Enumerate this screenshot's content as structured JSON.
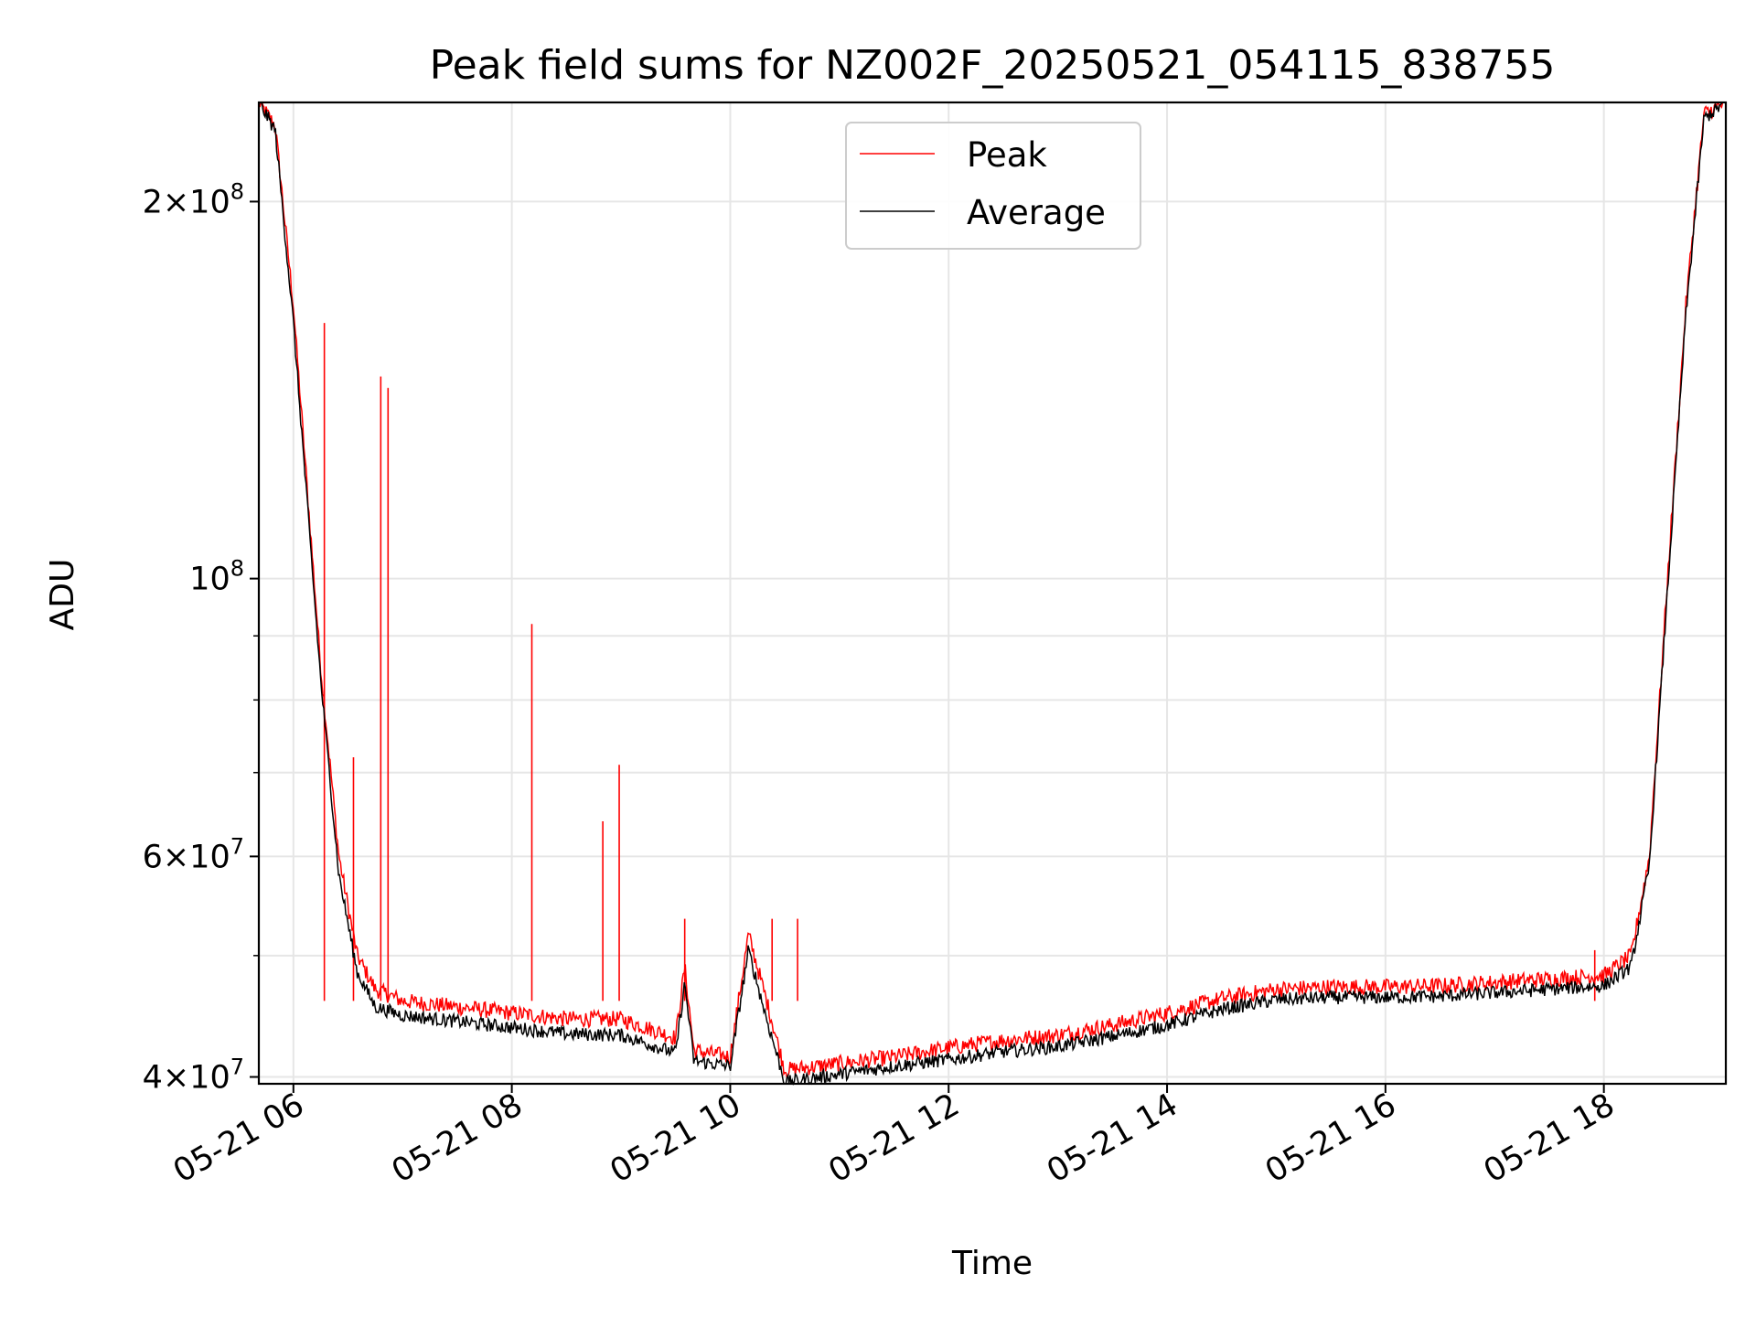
{
  "chart_data": {
    "type": "line",
    "title": "Peak field sums for NZ002F_20250521_054115_838755",
    "xlabel": "Time",
    "ylabel": "ADU",
    "y_scale": "log",
    "ylim": [
      39500000,
      240000000
    ],
    "xlim": [
      "2025-05-21 05:41",
      "2025-05-21 19:07"
    ],
    "x_tick_labels": [
      "05-21 06",
      "05-21 08",
      "05-21 10",
      "05-21 12",
      "05-21 14",
      "05-21 16",
      "05-21 18"
    ],
    "y_ticks": [
      {
        "value": 40000000,
        "mantissa": "4",
        "exp": "7"
      },
      {
        "value": 60000000,
        "mantissa": "6",
        "exp": "7"
      },
      {
        "value": 100000000,
        "mantissa": "",
        "exp": "8"
      },
      {
        "value": 200000000,
        "mantissa": "2",
        "exp": "8"
      }
    ],
    "grid": true,
    "legend_position": "upper center",
    "series": [
      {
        "name": "Peak",
        "color": "#ff0000",
        "points": [
          [
            "2025-05-21 05:41",
            240000000
          ],
          [
            "2025-05-21 05:50",
            230000000
          ],
          [
            "2025-05-21 06:00",
            165000000
          ],
          [
            "2025-05-21 06:15",
            85000000
          ],
          [
            "2025-05-21 06:25",
            60000000
          ],
          [
            "2025-05-21 06:35",
            50000000
          ],
          [
            "2025-05-21 06:45",
            47000000
          ],
          [
            "2025-05-21 07:00",
            46000000
          ],
          [
            "2025-05-21 07:30",
            45500000
          ],
          [
            "2025-05-21 08:00",
            45000000
          ],
          [
            "2025-05-21 08:30",
            44500000
          ],
          [
            "2025-05-21 09:00",
            44500000
          ],
          [
            "2025-05-21 09:30",
            43000000
          ],
          [
            "2025-05-21 09:35",
            49000000
          ],
          [
            "2025-05-21 09:40",
            42000000
          ],
          [
            "2025-05-21 10:00",
            41500000
          ],
          [
            "2025-05-21 10:10",
            52000000
          ],
          [
            "2025-05-21 10:20",
            46000000
          ],
          [
            "2025-05-21 10:30",
            40500000
          ],
          [
            "2025-05-21 11:00",
            41000000
          ],
          [
            "2025-05-21 11:30",
            41500000
          ],
          [
            "2025-05-21 12:00",
            42200000
          ],
          [
            "2025-05-21 12:30",
            42800000
          ],
          [
            "2025-05-21 13:00",
            43200000
          ],
          [
            "2025-05-21 13:30",
            44000000
          ],
          [
            "2025-05-21 14:00",
            45000000
          ],
          [
            "2025-05-21 14:30",
            46200000
          ],
          [
            "2025-05-21 15:00",
            47000000
          ],
          [
            "2025-05-21 15:30",
            47200000
          ],
          [
            "2025-05-21 16:00",
            47200000
          ],
          [
            "2025-05-21 16:30",
            47300000
          ],
          [
            "2025-05-21 17:00",
            47600000
          ],
          [
            "2025-05-21 17:30",
            47900000
          ],
          [
            "2025-05-21 18:00",
            48200000
          ],
          [
            "2025-05-21 18:15",
            50000000
          ],
          [
            "2025-05-21 18:25",
            60000000
          ],
          [
            "2025-05-21 18:35",
            100000000
          ],
          [
            "2025-05-21 18:45",
            165000000
          ],
          [
            "2025-05-21 18:55",
            235000000
          ],
          [
            "2025-05-21 19:07",
            240000000
          ]
        ],
        "spikes": [
          [
            "2025-05-21 06:17",
            160000000
          ],
          [
            "2025-05-21 06:48",
            145000000
          ],
          [
            "2025-05-21 06:52",
            142000000
          ],
          [
            "2025-05-21 06:33",
            72000000
          ],
          [
            "2025-05-21 08:11",
            92000000
          ],
          [
            "2025-05-21 08:50",
            64000000
          ],
          [
            "2025-05-21 08:59",
            71000000
          ],
          [
            "2025-05-21 09:35",
            53500000
          ],
          [
            "2025-05-21 10:23",
            53500000
          ],
          [
            "2025-05-21 10:37",
            53500000
          ],
          [
            "2025-05-21 17:55",
            50500000
          ]
        ]
      },
      {
        "name": "Average",
        "color": "#000000",
        "points": [
          [
            "2025-05-21 05:41",
            240000000
          ],
          [
            "2025-05-21 05:50",
            228000000
          ],
          [
            "2025-05-21 06:00",
            160000000
          ],
          [
            "2025-05-21 06:15",
            83000000
          ],
          [
            "2025-05-21 06:25",
            58000000
          ],
          [
            "2025-05-21 06:35",
            48500000
          ],
          [
            "2025-05-21 06:45",
            45500000
          ],
          [
            "2025-05-21 07:00",
            44800000
          ],
          [
            "2025-05-21 07:30",
            44300000
          ],
          [
            "2025-05-21 08:00",
            43800000
          ],
          [
            "2025-05-21 08:30",
            43300000
          ],
          [
            "2025-05-21 09:00",
            43200000
          ],
          [
            "2025-05-21 09:30",
            41800000
          ],
          [
            "2025-05-21 09:35",
            47500000
          ],
          [
            "2025-05-21 09:40",
            41200000
          ],
          [
            "2025-05-21 10:00",
            40800000
          ],
          [
            "2025-05-21 10:10",
            50500000
          ],
          [
            "2025-05-21 10:20",
            44500000
          ],
          [
            "2025-05-21 10:30",
            39600000
          ],
          [
            "2025-05-21 11:00",
            40200000
          ],
          [
            "2025-05-21 11:30",
            40800000
          ],
          [
            "2025-05-21 12:00",
            41300000
          ],
          [
            "2025-05-21 12:30",
            41900000
          ],
          [
            "2025-05-21 13:00",
            42300000
          ],
          [
            "2025-05-21 13:30",
            43100000
          ],
          [
            "2025-05-21 14:00",
            44000000
          ],
          [
            "2025-05-21 14:30",
            45300000
          ],
          [
            "2025-05-21 15:00",
            46100000
          ],
          [
            "2025-05-21 15:30",
            46300000
          ],
          [
            "2025-05-21 16:00",
            46300000
          ],
          [
            "2025-05-21 16:30",
            46400000
          ],
          [
            "2025-05-21 17:00",
            46700000
          ],
          [
            "2025-05-21 17:30",
            47000000
          ],
          [
            "2025-05-21 18:00",
            47300000
          ],
          [
            "2025-05-21 18:15",
            49000000
          ],
          [
            "2025-05-21 18:25",
            59000000
          ],
          [
            "2025-05-21 18:35",
            98000000
          ],
          [
            "2025-05-21 18:45",
            162000000
          ],
          [
            "2025-05-21 18:55",
            233000000
          ],
          [
            "2025-05-21 19:07",
            240000000
          ]
        ]
      }
    ]
  }
}
